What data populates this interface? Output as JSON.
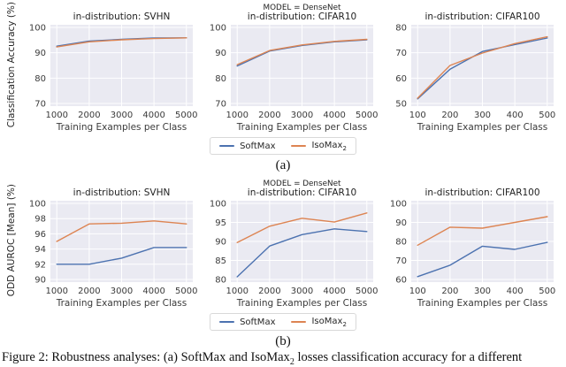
{
  "figures": {
    "a": {
      "sublabel": "(a)",
      "ylabel": "Classification Accuracy (%)"
    },
    "b": {
      "sublabel": "(b)",
      "ylabel": "ODD AUROC [Mean] (%)"
    }
  },
  "legend": {
    "items": [
      {
        "label": "SoftMax",
        "sub": "",
        "color": "#4c72b0"
      },
      {
        "label": "IsoMax",
        "sub": "2",
        "color": "#dd8452"
      }
    ]
  },
  "caption": {
    "prefix": "Figure 2: Robustness analyses: (a) SoftMax and IsoMax",
    "sub": "2",
    "suffix": " losses classification accuracy for a different"
  },
  "colors": {
    "plot_bg": "#eaeaf2",
    "grid": "#ffffff",
    "tick_text": "#3b3b3b",
    "title_text": "#1f1f1f"
  },
  "chart_data": [
    {
      "type": "line",
      "figure": "a",
      "panel": "SVHN",
      "model_line": "",
      "title": "in-distribution: SVHN",
      "xlabel": "Training Examples per Class",
      "x": [
        1000,
        2000,
        3000,
        4000,
        5000
      ],
      "xticks": [
        "1000",
        "2000",
        "3000",
        "4000",
        "5000"
      ],
      "yticks": [
        70,
        80,
        90,
        100
      ],
      "ylim": [
        70,
        100
      ],
      "series": [
        {
          "name": "SoftMax",
          "color": "#4c72b0",
          "values": [
            92.6,
            94.6,
            95.3,
            95.8,
            95.9
          ]
        },
        {
          "name": "IsoMax2",
          "color": "#dd8452",
          "values": [
            92.3,
            94.3,
            95.1,
            95.6,
            95.9
          ]
        }
      ]
    },
    {
      "type": "line",
      "figure": "a",
      "panel": "CIFAR10",
      "model_line": "MODEL = DenseNet",
      "title": "in-distribution: CIFAR10",
      "xlabel": "Training Examples per Class",
      "x": [
        1000,
        2000,
        3000,
        4000,
        5000
      ],
      "xticks": [
        "1000",
        "2000",
        "3000",
        "4000",
        "5000"
      ],
      "yticks": [
        70,
        80,
        90,
        100
      ],
      "ylim": [
        70,
        100
      ],
      "series": [
        {
          "name": "SoftMax",
          "color": "#4c72b0",
          "values": [
            84.8,
            90.7,
            92.9,
            94.3,
            95.1
          ]
        },
        {
          "name": "IsoMax2",
          "color": "#dd8452",
          "values": [
            85.3,
            90.9,
            93.1,
            94.5,
            95.3
          ]
        }
      ]
    },
    {
      "type": "line",
      "figure": "a",
      "panel": "CIFAR100",
      "model_line": "",
      "title": "in-distribution: CIFAR100",
      "xlabel": "Training Examples per Class",
      "x": [
        100,
        200,
        300,
        400,
        500
      ],
      "xticks": [
        "100",
        "200",
        "300",
        "400",
        "500"
      ],
      "yticks": [
        50,
        60,
        70,
        80
      ],
      "ylim": [
        50,
        80
      ],
      "series": [
        {
          "name": "SoftMax",
          "color": "#4c72b0",
          "values": [
            51.8,
            63.5,
            70.5,
            73.2,
            75.8
          ]
        },
        {
          "name": "IsoMax2",
          "color": "#dd8452",
          "values": [
            52.1,
            65.0,
            69.9,
            73.6,
            76.3
          ]
        }
      ]
    },
    {
      "type": "line",
      "figure": "b",
      "panel": "SVHN",
      "model_line": "",
      "title": "in-distribution: SVHN",
      "xlabel": "Training Examples per Class",
      "x": [
        1000,
        2000,
        3000,
        4000,
        5000
      ],
      "xticks": [
        "1000",
        "2000",
        "3000",
        "4000",
        "5000"
      ],
      "yticks": [
        90,
        92,
        94,
        96,
        98,
        100
      ],
      "ylim": [
        90,
        100
      ],
      "series": [
        {
          "name": "SoftMax",
          "color": "#4c72b0",
          "values": [
            92.0,
            92.0,
            92.8,
            94.2,
            94.2
          ]
        },
        {
          "name": "IsoMax2",
          "color": "#dd8452",
          "values": [
            95.0,
            97.3,
            97.4,
            97.7,
            97.3
          ]
        }
      ]
    },
    {
      "type": "line",
      "figure": "b",
      "panel": "CIFAR10",
      "model_line": "MODEL = DenseNet",
      "title": "in-distribution: CIFAR10",
      "xlabel": "Training Examples per Class",
      "x": [
        1000,
        2000,
        3000,
        4000,
        5000
      ],
      "xticks": [
        "1000",
        "2000",
        "3000",
        "4000",
        "5000"
      ],
      "yticks": [
        80,
        85,
        90,
        95,
        100
      ],
      "ylim": [
        80,
        100
      ],
      "series": [
        {
          "name": "SoftMax",
          "color": "#4c72b0",
          "values": [
            80.7,
            88.8,
            91.8,
            93.3,
            92.6
          ]
        },
        {
          "name": "IsoMax2",
          "color": "#dd8452",
          "values": [
            89.7,
            94.0,
            96.1,
            95.1,
            97.5
          ]
        }
      ]
    },
    {
      "type": "line",
      "figure": "b",
      "panel": "CIFAR100",
      "model_line": "",
      "title": "in-distribution: CIFAR100",
      "xlabel": "Training Examples per Class",
      "x": [
        100,
        200,
        300,
        400,
        500
      ],
      "xticks": [
        "100",
        "200",
        "300",
        "400",
        "500"
      ],
      "yticks": [
        60,
        70,
        80,
        90,
        100
      ],
      "ylim": [
        60,
        100
      ],
      "series": [
        {
          "name": "SoftMax",
          "color": "#4c72b0",
          "values": [
            61.5,
            67.5,
            77.5,
            75.8,
            79.5
          ]
        },
        {
          "name": "IsoMax2",
          "color": "#dd8452",
          "values": [
            78.0,
            87.5,
            87.0,
            90.0,
            93.0
          ]
        }
      ]
    }
  ]
}
